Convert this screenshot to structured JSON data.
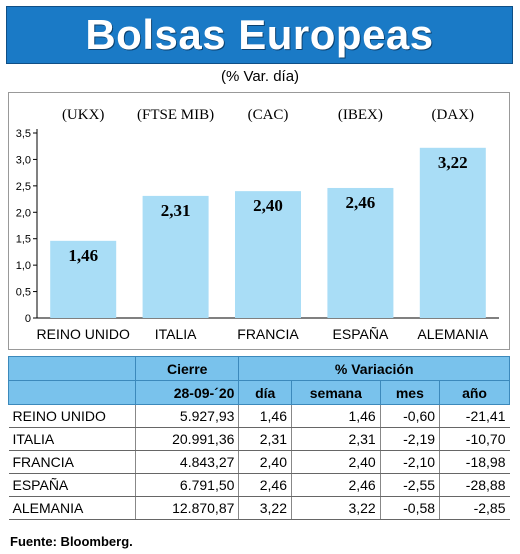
{
  "title": "Bolsas Europeas",
  "subtitle": "(% Var. día)",
  "chart_data": {
    "type": "bar",
    "categories": [
      "REINO UNIDO",
      "ITALIA",
      "FRANCIA",
      "ESPAÑA",
      "ALEMANIA"
    ],
    "tickers": [
      "(UKX)",
      "(FTSE MIB)",
      "(CAC)",
      "(IBEX)",
      "(DAX)"
    ],
    "values": [
      1.46,
      2.31,
      2.4,
      2.46,
      3.22
    ],
    "value_labels": [
      "1,46",
      "2,31",
      "2,40",
      "2,46",
      "3,22"
    ],
    "ylim": [
      0,
      3.5
    ],
    "yticks": [
      "0",
      "0,5",
      "1,0",
      "1,5",
      "2,0",
      "2,5",
      "3,0",
      "3,5"
    ],
    "bar_color": "#a9ddf6",
    "grid": false
  },
  "table": {
    "header_top": [
      "",
      "Cierre",
      "% Variación"
    ],
    "header_sub": [
      "",
      "28-09-´20",
      "día",
      "semana",
      "mes",
      "año"
    ],
    "rows": [
      {
        "country": "REINO UNIDO",
        "cierre": "5.927,93",
        "dia": "1,46",
        "semana": "1,46",
        "mes": "-0,60",
        "ano": "-21,41"
      },
      {
        "country": "ITALIA",
        "cierre": "20.991,36",
        "dia": "2,31",
        "semana": "2,31",
        "mes": "-2,19",
        "ano": "-10,70"
      },
      {
        "country": "FRANCIA",
        "cierre": "4.843,27",
        "dia": "2,40",
        "semana": "2,40",
        "mes": "-2,10",
        "ano": "-18,98"
      },
      {
        "country": "ESPAÑA",
        "cierre": "6.791,50",
        "dia": "2,46",
        "semana": "2,46",
        "mes": "-2,55",
        "ano": "-28,88"
      },
      {
        "country": "ALEMANIA",
        "cierre": "12.870,87",
        "dia": "3,22",
        "semana": "3,22",
        "mes": "-0,58",
        "ano": "-2,85"
      }
    ],
    "header_color": "#79c2ec"
  },
  "source": "Fuente: Bloomberg."
}
